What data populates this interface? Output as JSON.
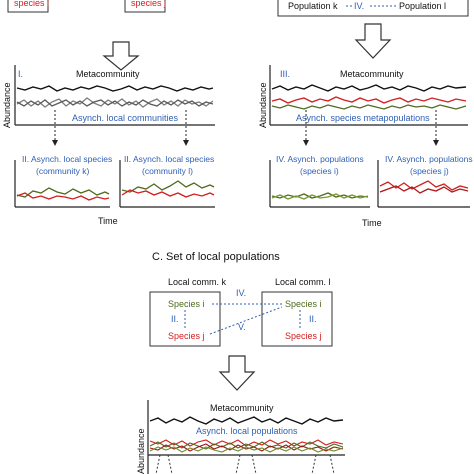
{
  "top_left": {
    "species_i": "species i",
    "species_j": "species j"
  },
  "top_right": {
    "pop_k": "Population k",
    "roman": "IV.",
    "pop_l": "Population l"
  },
  "panel_I": {
    "roman": "I.",
    "title": "Metacommunity",
    "label": "Asynch. local communities",
    "sub_left": "II. Asynch. local species",
    "sub_left_2": "(community k)",
    "sub_right": "II. Asynch. local species",
    "sub_right_2": "(community l)"
  },
  "panel_III": {
    "roman": "III.",
    "title": "Metacommunity",
    "label": "Asynch. species metapopulations",
    "sub_left": "IV. Asynch. populations",
    "sub_left_2": "(species i)",
    "sub_right": "IV. Asynch. populations",
    "sub_right_2": "(species j)"
  },
  "axes": {
    "ylabel_left": "Abundance",
    "xlabel_left": "Time",
    "xlabel_right": "Time",
    "ylabel_bottom": "Abundance"
  },
  "section_c": {
    "title": "C. Set of local populations",
    "comm_k": "Local comm. k",
    "comm_l": "Local comm. l",
    "species_i_k": "Species i",
    "species_j_k": "Species j",
    "species_i_l": "Species i",
    "species_j_l": "Species j",
    "roman_II_left": "II.",
    "roman_II_right": "II.",
    "roman_IV": "IV.",
    "roman_V": "V."
  },
  "bottom_panel": {
    "title": "Metacommunity",
    "label": "Asynch. local populations"
  },
  "colors": {
    "black": "#111111",
    "grey": "#7f7f7f",
    "red": "#d11f1f",
    "green": "#4f6b1c",
    "blue": "#2f5fb3"
  },
  "icons": [
    "down-arrow-icon"
  ]
}
